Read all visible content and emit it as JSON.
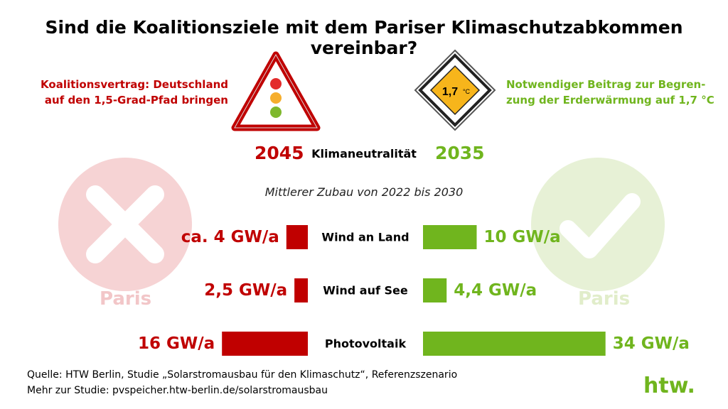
{
  "title": "Sind die Koalitionsziele mit dem Pariser Klimaschutzabkommen vereinbar?",
  "left_note": {
    "line1": "Koalitionsvertrag: Deutschland",
    "line2": "auf den 1,5-Grad-Pfad bringen"
  },
  "right_note": {
    "line1": "Notwendiger Beitrag zur Begren-",
    "line2": "zung der Erderwärmung auf 1,7 °C"
  },
  "sign_value": "1,7",
  "sign_unit": "°C",
  "neutrality": {
    "label": "Klimaneutralität",
    "year_left": "2045",
    "year_right": "2035"
  },
  "paris_left": "Paris",
  "paris_right": "Paris",
  "colors": {
    "red": "#c00000",
    "green": "#70b51e",
    "cross_bg": "#f6d3d4",
    "check_bg": "#e7f1d6"
  },
  "icons": {
    "left": "warning-traffic-light-icon",
    "right": "priority-road-sign-icon",
    "cross": "cross-circle-icon",
    "check": "check-circle-icon",
    "logo": "htw-logo"
  },
  "chart_data": {
    "type": "bar",
    "title": "Mittlerer Zubau von 2022 bis 2030",
    "categories": [
      "Wind an Land",
      "Wind auf See",
      "Photovoltaik"
    ],
    "series": [
      {
        "values": [
          4,
          2.5,
          16
        ],
        "labels": [
          "ca. 4 GW/a",
          "2,5 GW/a",
          "16 GW/a"
        ],
        "color": "#c00000"
      },
      {
        "values": [
          10,
          4.4,
          34
        ],
        "labels": [
          "10 GW/a",
          "4,4 GW/a",
          "34 GW/a"
        ],
        "color": "#70b51e"
      }
    ]
  },
  "source_line": "Quelle: HTW Berlin, Studie „Solarstromausbau für den Klimaschutz“, Referenzszenario",
  "study_line": "Mehr zur Studie: pvspeicher.htw-berlin.de/solarstromausbau",
  "logo_text": "htw."
}
